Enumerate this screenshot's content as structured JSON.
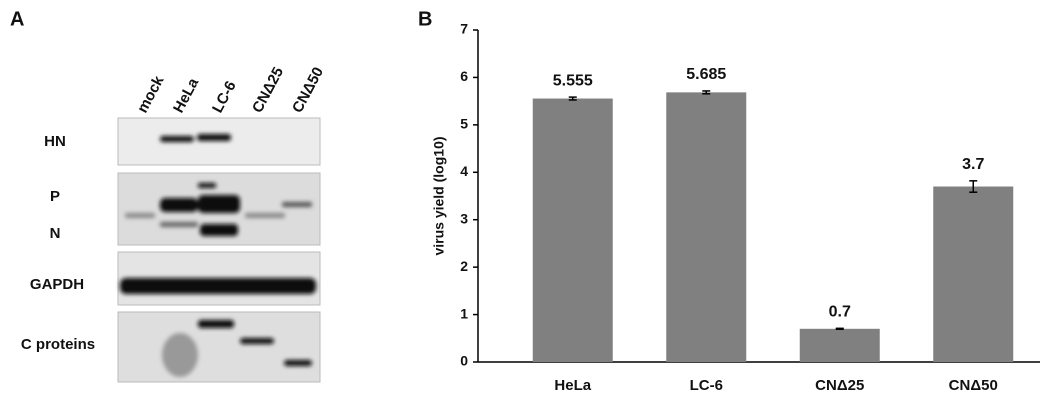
{
  "blot": {
    "panel_label": "A",
    "lanes": [
      "mock",
      "HeLa",
      "LC-6",
      "CNΔ25",
      "CNΔ50"
    ],
    "rows": [
      "HN",
      "P",
      "N",
      "GAPDH",
      "C proteins"
    ]
  },
  "chart_data": {
    "type": "bar",
    "panel_label": "B",
    "y_label": "virus yield (log10)",
    "categories": [
      "HeLa",
      "LC-6",
      "CNΔ25",
      "CNΔ50"
    ],
    "values": [
      5.555,
      5.685,
      0.7,
      3.7
    ],
    "errors": [
      0.03,
      0.03,
      0.01,
      0.12
    ],
    "color": "#808080",
    "ylim": [
      0,
      7
    ],
    "yticks": [
      0,
      1,
      2,
      3,
      4,
      5,
      6,
      7
    ],
    "grid": false
  }
}
